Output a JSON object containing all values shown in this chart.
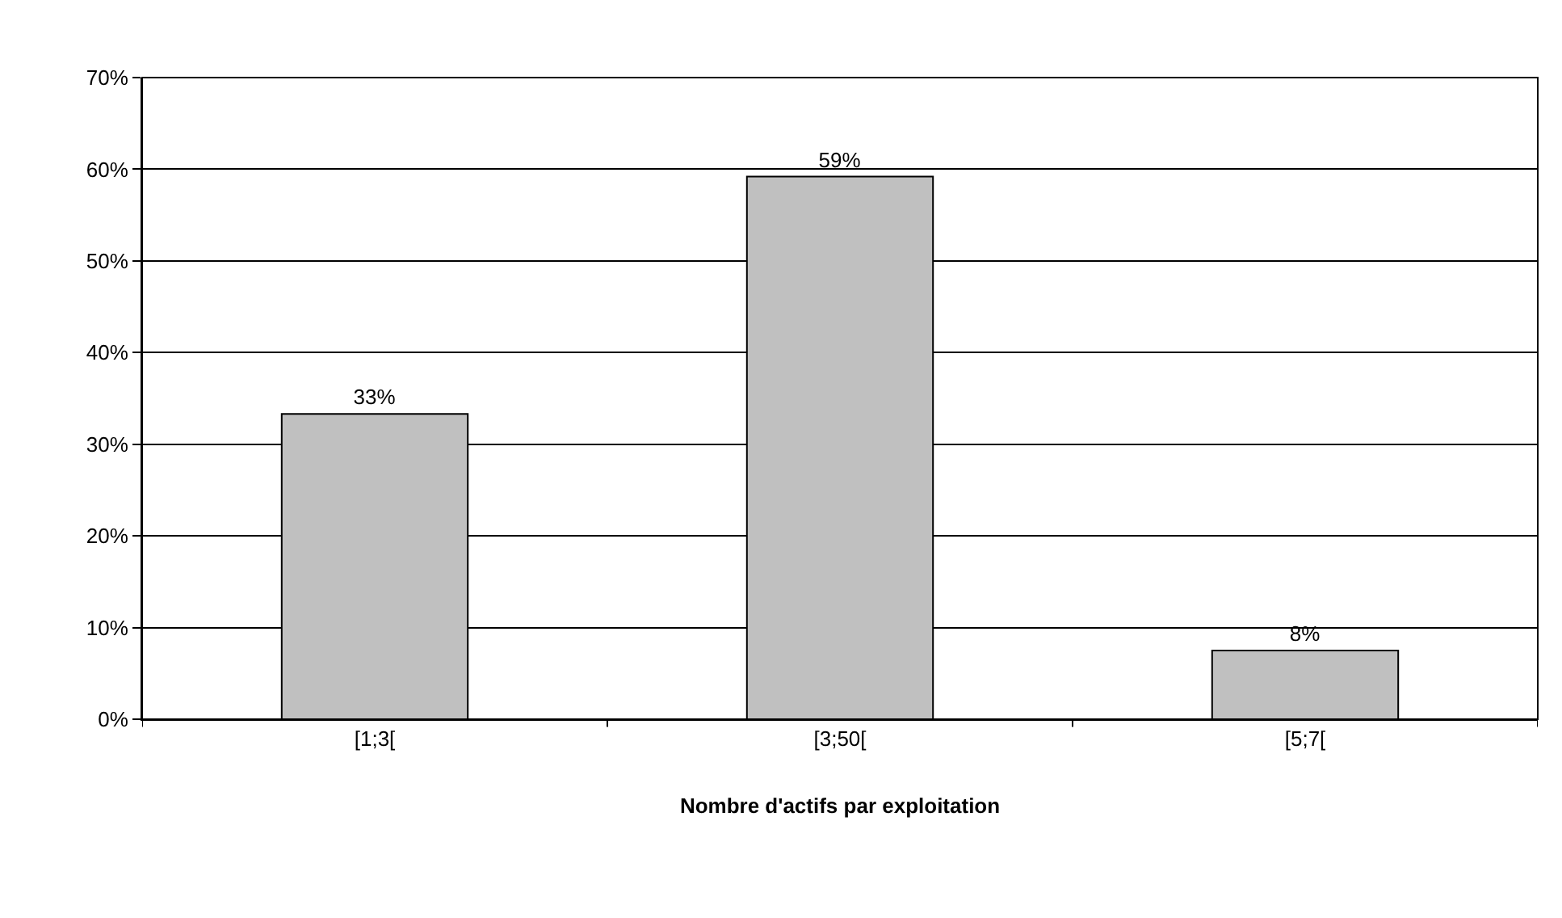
{
  "chart_data": {
    "type": "bar",
    "xlabel": "Nombre d'actifs par exploitation",
    "categories": [
      "[1;3[",
      "[3;50[",
      "[5;7["
    ],
    "values": [
      33.3,
      59.2,
      7.5
    ],
    "value_labels": [
      "33%",
      "59%",
      "8%"
    ],
    "color": "#c0c0c0",
    "ylim": [
      0,
      70
    ],
    "yticks": [
      {
        "value": 0,
        "label": "0%"
      },
      {
        "value": 10,
        "label": "10%"
      },
      {
        "value": 20,
        "label": "20%"
      },
      {
        "value": 30,
        "label": "30%"
      },
      {
        "value": 40,
        "label": "40%"
      },
      {
        "value": 50,
        "label": "50%"
      },
      {
        "value": 60,
        "label": "60%"
      },
      {
        "value": 70,
        "label": "70%"
      }
    ],
    "grid": "y",
    "legend": false
  }
}
